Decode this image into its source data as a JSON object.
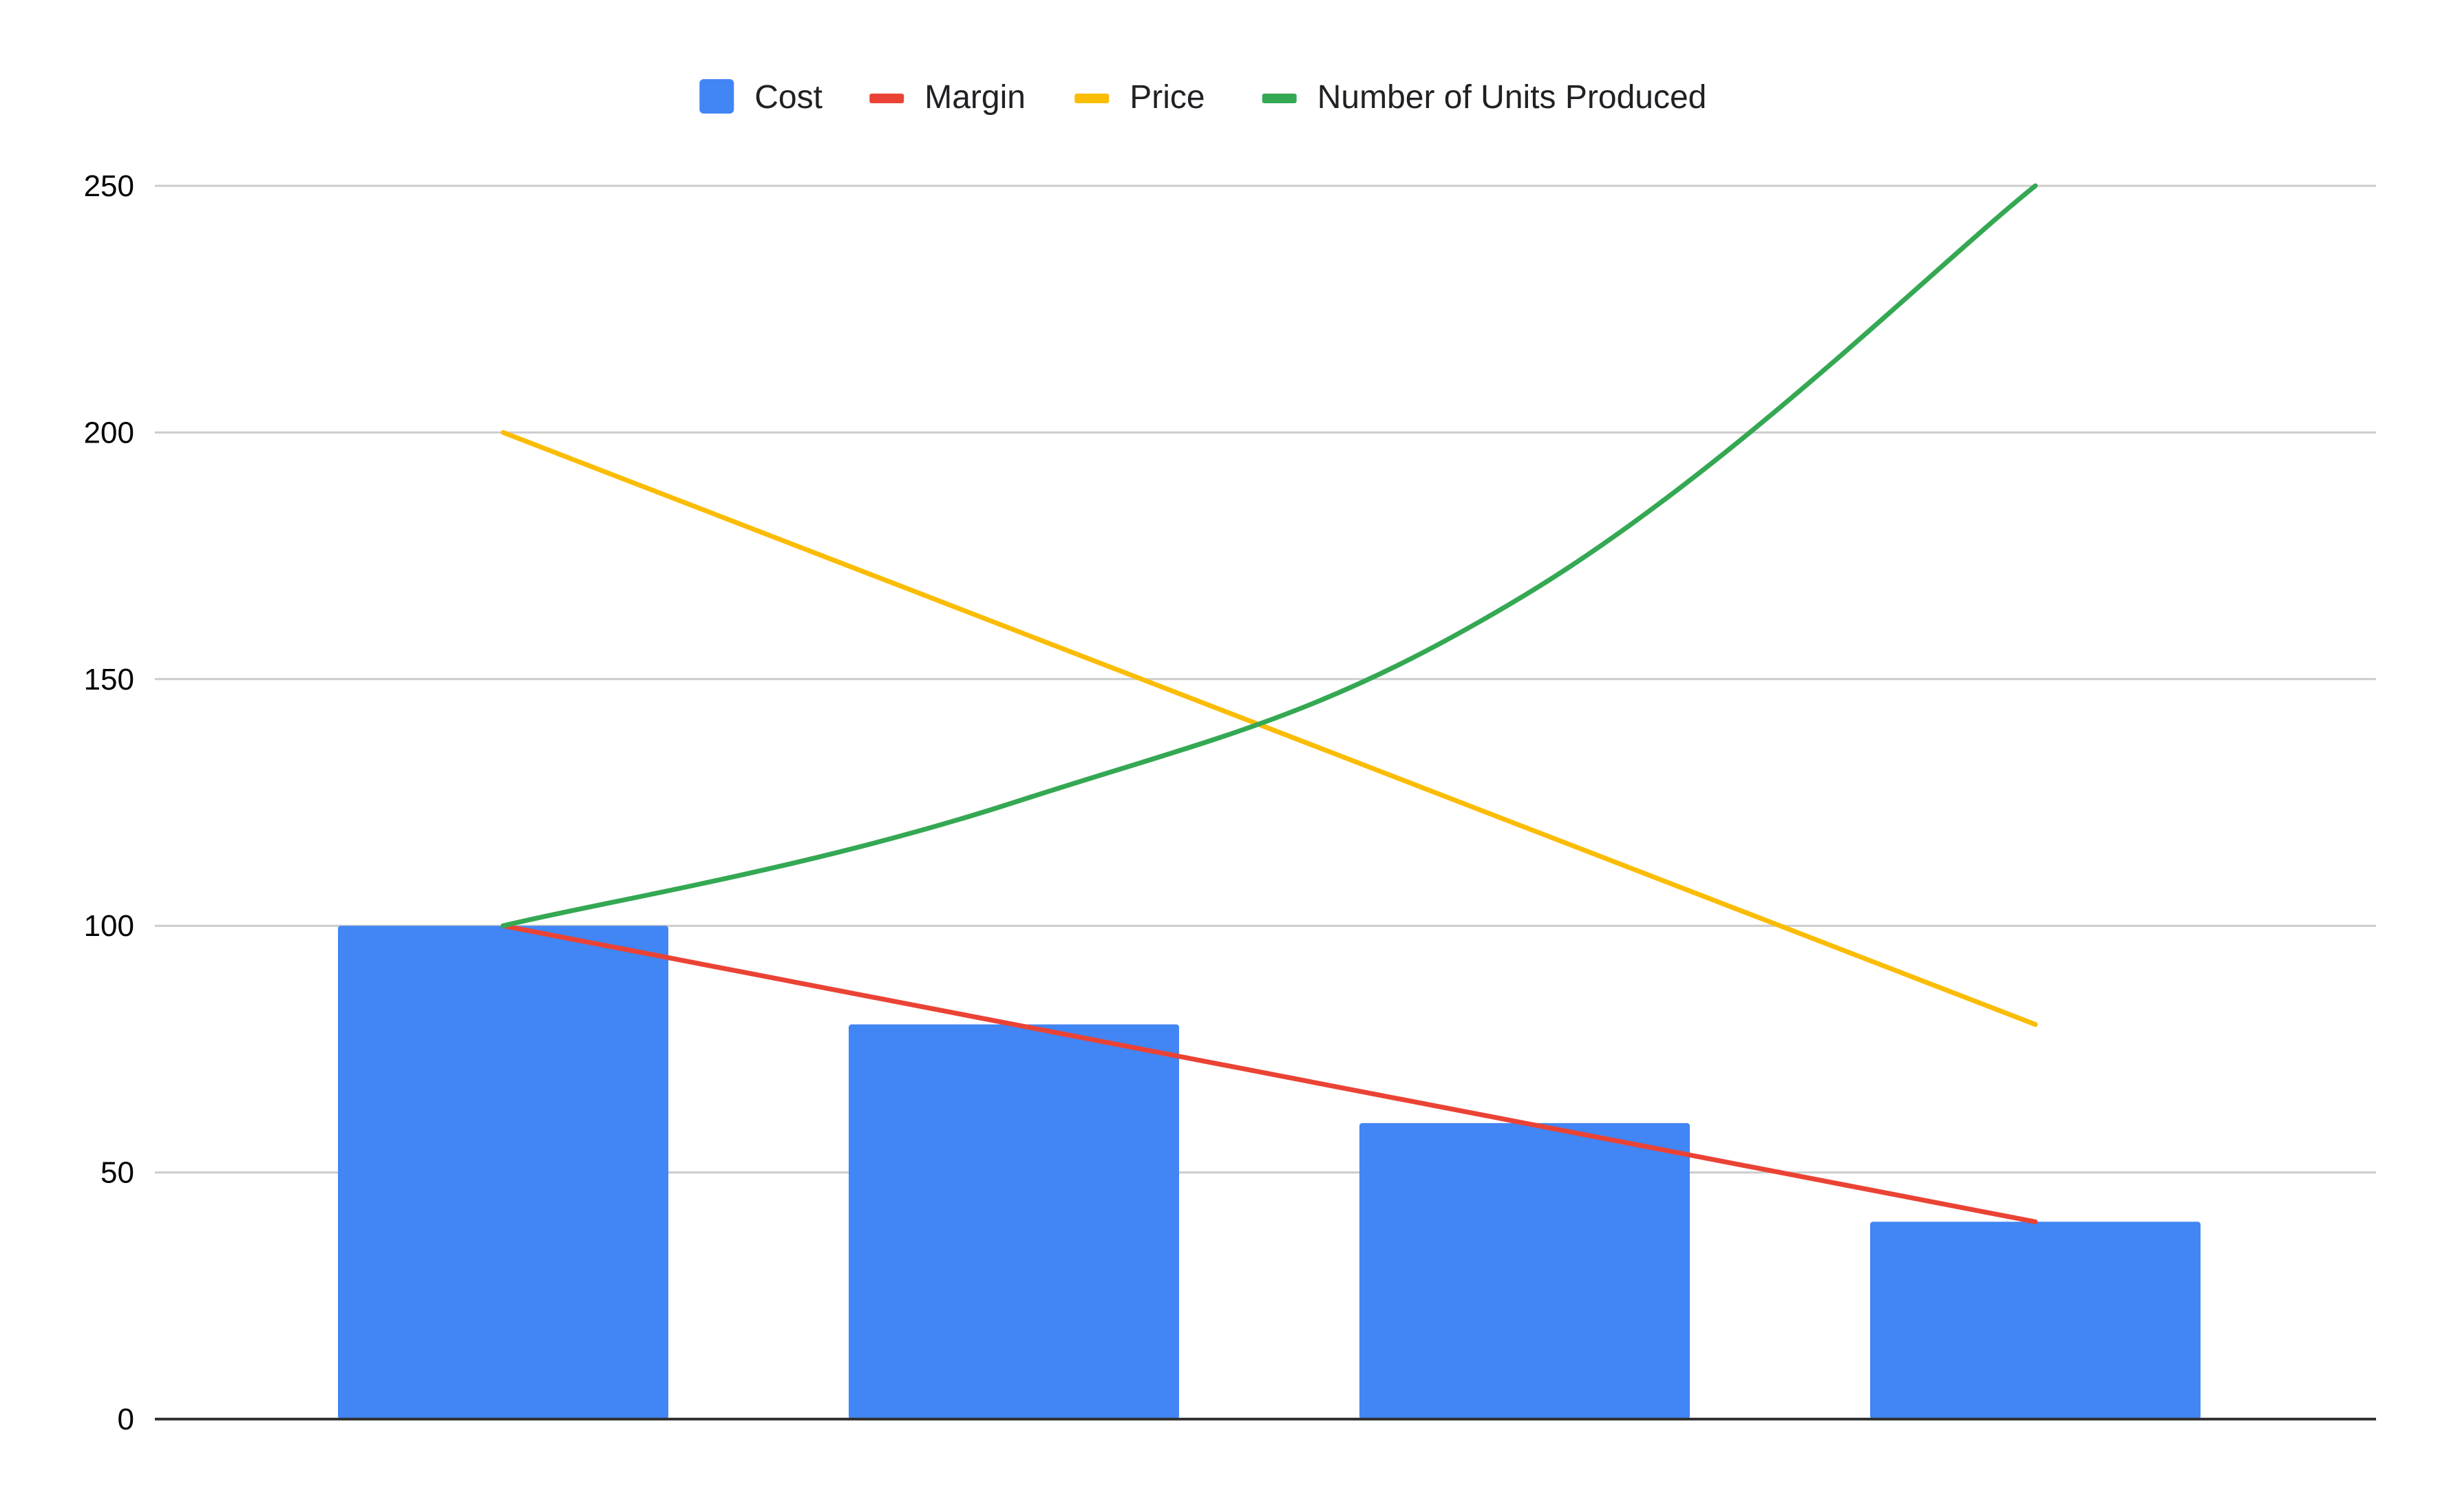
{
  "chart_data": {
    "type": "bar",
    "categories": [
      "",
      "",
      "",
      ""
    ],
    "ylim": [
      0,
      250
    ],
    "yticks": [
      0,
      50,
      100,
      150,
      200,
      250
    ],
    "grid": true,
    "legend_position": "top",
    "series": [
      {
        "name": "Cost",
        "type": "bar",
        "color": "#4285f4",
        "values": [
          100,
          80,
          60,
          40
        ]
      },
      {
        "name": "Margin",
        "type": "line",
        "color": "#ea4335",
        "values": [
          100,
          80,
          60,
          40
        ]
      },
      {
        "name": "Price",
        "type": "line",
        "color": "#fbbc04",
        "values": [
          200,
          160,
          120,
          80
        ]
      },
      {
        "name": "Number of Units Produced",
        "type": "line",
        "smooth": true,
        "color": "#34a853",
        "values": [
          100,
          125,
          167,
          250
        ]
      }
    ]
  }
}
